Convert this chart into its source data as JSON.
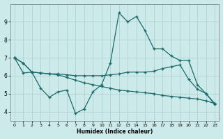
{
  "xlabel": "Humidex (Indice chaleur)",
  "bg_color": "#cceaea",
  "grid_color": "#aacccc",
  "line_color": "#1a6b6b",
  "xlim": [
    -0.5,
    23.5
  ],
  "ylim": [
    3.5,
    10.0
  ],
  "yticks": [
    4,
    5,
    6,
    7,
    8,
    9
  ],
  "xticks": [
    0,
    1,
    2,
    3,
    4,
    5,
    6,
    7,
    8,
    9,
    10,
    11,
    12,
    13,
    14,
    15,
    16,
    17,
    18,
    19,
    20,
    21,
    22,
    23
  ],
  "line1_x": [
    0,
    1,
    2,
    3,
    4,
    5,
    6,
    7,
    8,
    9,
    10,
    11,
    12,
    13,
    14,
    15,
    16,
    17,
    18,
    19,
    20,
    21,
    22,
    23
  ],
  "line1_y": [
    7.0,
    6.15,
    6.2,
    5.3,
    4.8,
    5.1,
    5.2,
    3.9,
    4.15,
    5.1,
    5.5,
    6.7,
    9.5,
    9.0,
    9.3,
    8.5,
    7.5,
    7.5,
    7.1,
    6.85,
    6.85,
    5.5,
    5.0,
    4.4
  ],
  "line2_x": [
    0,
    1,
    2,
    3,
    4,
    5,
    6,
    7,
    8,
    9,
    10,
    11,
    12,
    13,
    14,
    15,
    16,
    17,
    18,
    19,
    20,
    21,
    22,
    23
  ],
  "line2_y": [
    7.0,
    6.7,
    6.2,
    6.15,
    6.1,
    6.1,
    6.05,
    6.0,
    6.0,
    6.0,
    6.0,
    6.05,
    6.1,
    6.2,
    6.2,
    6.2,
    6.25,
    6.4,
    6.5,
    6.6,
    5.8,
    5.25,
    5.0,
    4.45
  ],
  "line3_x": [
    0,
    1,
    2,
    3,
    4,
    5,
    6,
    7,
    8,
    9,
    10,
    11,
    12,
    13,
    14,
    15,
    16,
    17,
    18,
    19,
    20,
    21,
    22,
    23
  ],
  "line3_y": [
    7.0,
    6.7,
    6.2,
    6.15,
    6.1,
    6.05,
    5.9,
    5.75,
    5.6,
    5.5,
    5.4,
    5.3,
    5.2,
    5.15,
    5.1,
    5.05,
    5.0,
    4.9,
    4.85,
    4.8,
    4.75,
    4.7,
    4.6,
    4.45
  ]
}
